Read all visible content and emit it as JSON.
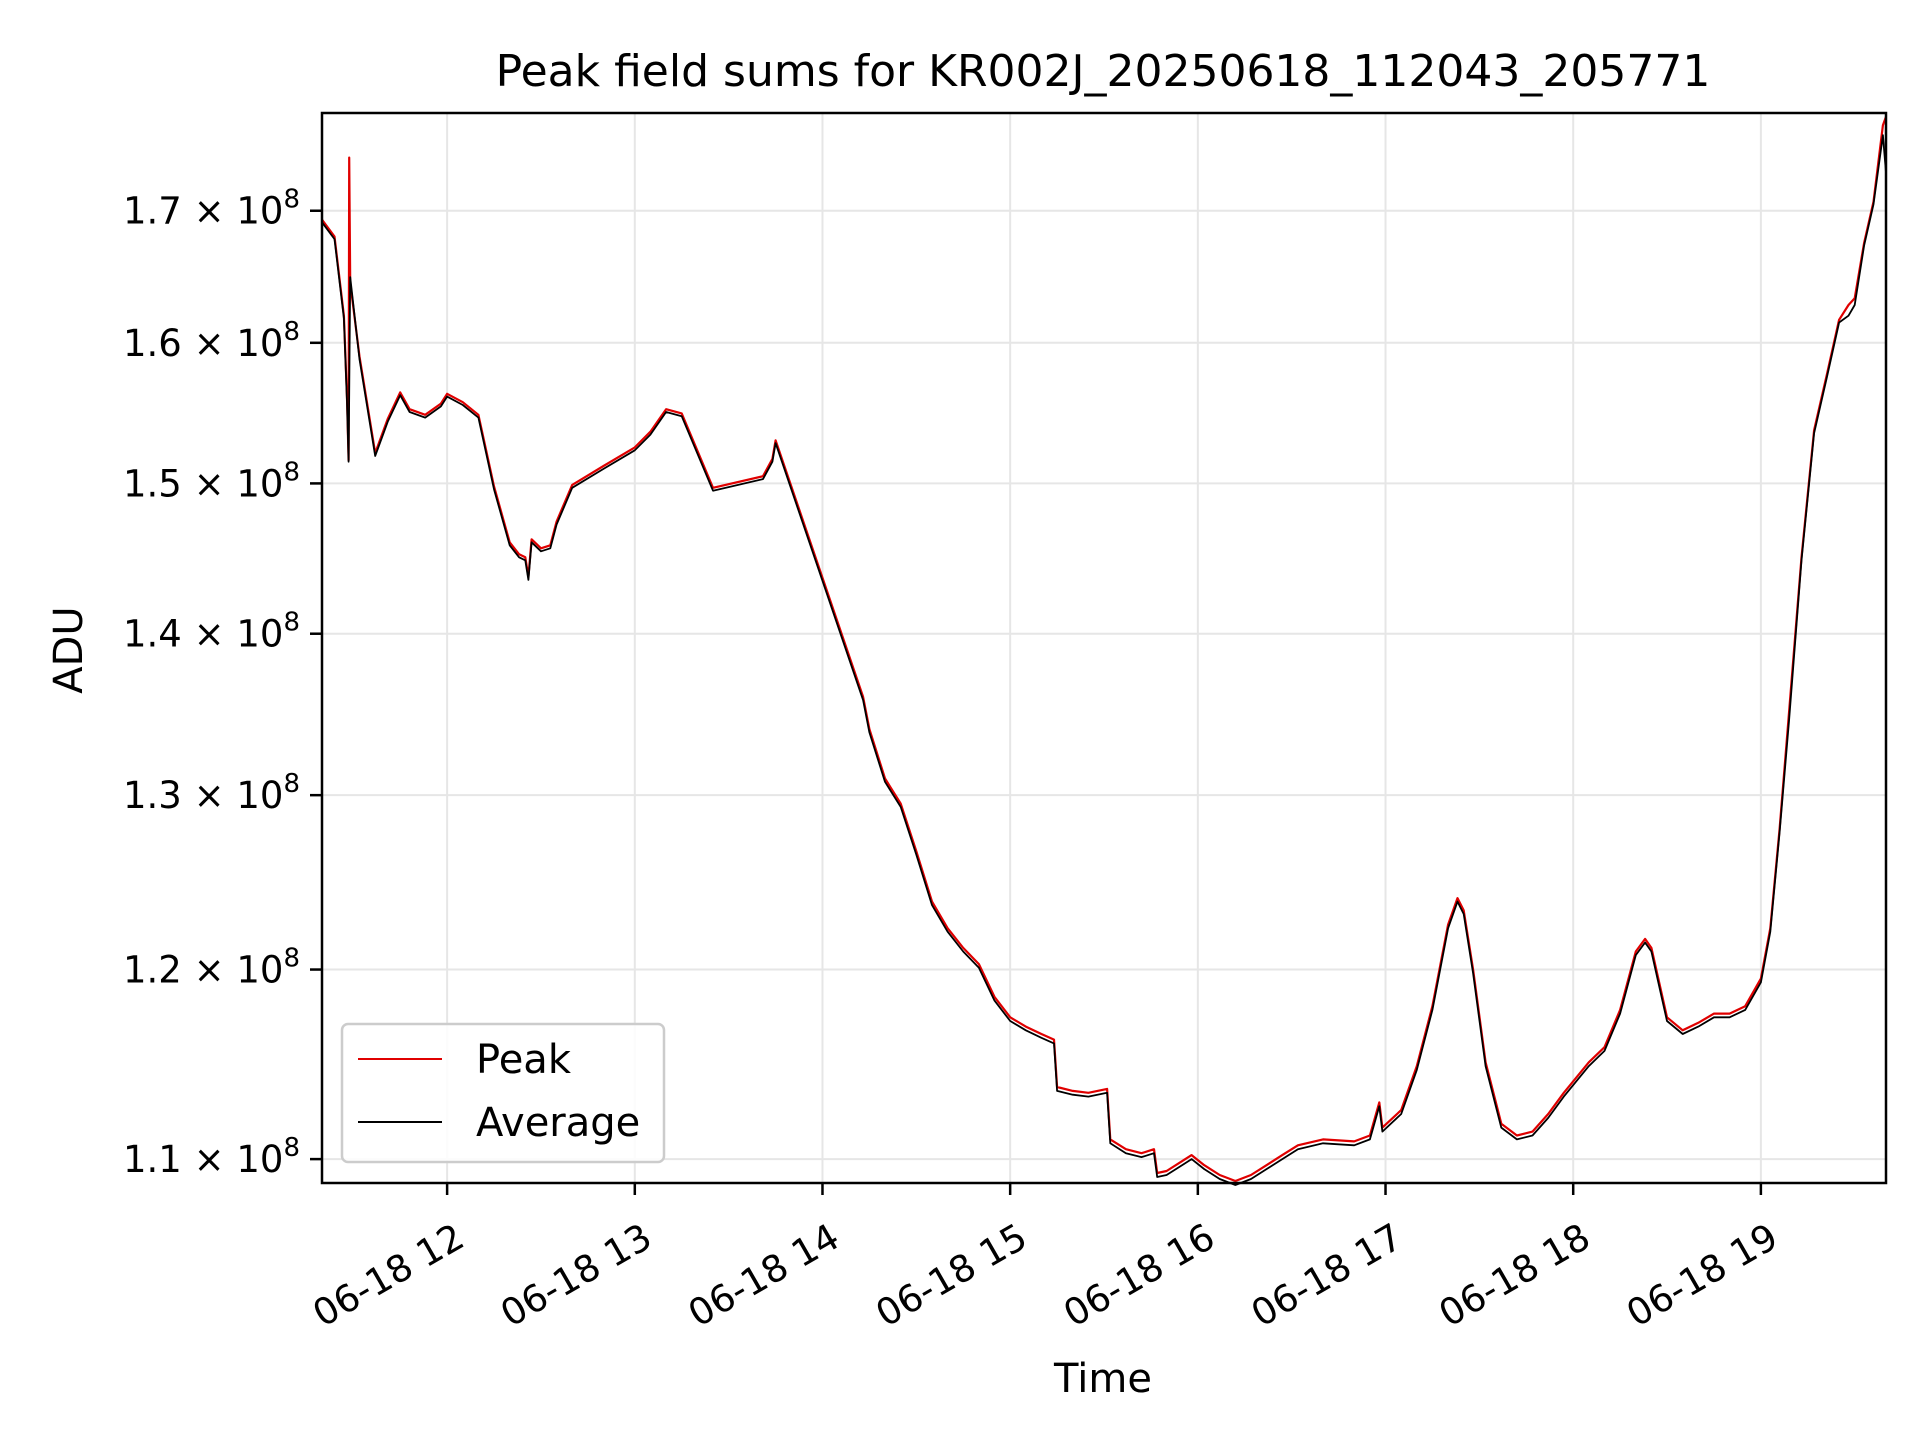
{
  "chart_data": {
    "type": "line",
    "title": "Peak field sums for KR002J_20250618_112043_205771",
    "xlabel": "Time",
    "ylabel": "ADU",
    "yscale": "log",
    "ylim": [
      108800000,
      177800000
    ],
    "xlim": [
      "2025-06-18T11:20",
      "2025-06-18T19:40"
    ],
    "grid": true,
    "legend_position": "lower-left",
    "x_ticks": [
      {
        "t": "2025-06-18T12:00",
        "label": "06-18 12"
      },
      {
        "t": "2025-06-18T13:00",
        "label": "06-18 13"
      },
      {
        "t": "2025-06-18T14:00",
        "label": "06-18 14"
      },
      {
        "t": "2025-06-18T15:00",
        "label": "06-18 15"
      },
      {
        "t": "2025-06-18T16:00",
        "label": "06-18 16"
      },
      {
        "t": "2025-06-18T17:00",
        "label": "06-18 17"
      },
      {
        "t": "2025-06-18T18:00",
        "label": "06-18 18"
      },
      {
        "t": "2025-06-18T19:00",
        "label": "06-18 19"
      }
    ],
    "y_ticks": [
      {
        "value": 110000000,
        "mantissa": "1.1",
        "base": "10",
        "exp": "8"
      },
      {
        "value": 120000000,
        "mantissa": "1.2",
        "base": "10",
        "exp": "8"
      },
      {
        "value": 130000000,
        "mantissa": "1.3",
        "base": "10",
        "exp": "8"
      },
      {
        "value": 140000000,
        "mantissa": "1.4",
        "base": "10",
        "exp": "8"
      },
      {
        "value": 150000000,
        "mantissa": "1.5",
        "base": "10",
        "exp": "8"
      },
      {
        "value": 160000000,
        "mantissa": "1.6",
        "base": "10",
        "exp": "8"
      },
      {
        "value": 170000000,
        "mantissa": "1.7",
        "base": "10",
        "exp": "8"
      }
    ],
    "series": [
      {
        "name": "Peak",
        "color": "#e00000",
        "points": [
          [
            "2025-06-18T11:20",
            169300000
          ],
          [
            "2025-06-18T11:24",
            168000000
          ],
          [
            "2025-06-18T11:27",
            162000000
          ],
          [
            "2025-06-18T11:28",
            156000000
          ],
          [
            "2025-06-18T11:28.5",
            151600000
          ],
          [
            "2025-06-18T11:28.7",
            174200000
          ],
          [
            "2025-06-18T11:29",
            164500000
          ],
          [
            "2025-06-18T11:32",
            159000000
          ],
          [
            "2025-06-18T11:37",
            152100000
          ],
          [
            "2025-06-18T11:41",
            154500000
          ],
          [
            "2025-06-18T11:45",
            156400000
          ],
          [
            "2025-06-18T11:48",
            155200000
          ],
          [
            "2025-06-18T11:53",
            154800000
          ],
          [
            "2025-06-18T11:58",
            155600000
          ],
          [
            "2025-06-18T12:00",
            156300000
          ],
          [
            "2025-06-18T12:05",
            155700000
          ],
          [
            "2025-06-18T12:10",
            154800000
          ],
          [
            "2025-06-18T12:15",
            149800000
          ],
          [
            "2025-06-18T12:20",
            146000000
          ],
          [
            "2025-06-18T12:23",
            145200000
          ],
          [
            "2025-06-18T12:25",
            145000000
          ],
          [
            "2025-06-18T12:26",
            143700000
          ],
          [
            "2025-06-18T12:27",
            146200000
          ],
          [
            "2025-06-18T12:30",
            145600000
          ],
          [
            "2025-06-18T12:33",
            145800000
          ],
          [
            "2025-06-18T12:35",
            147400000
          ],
          [
            "2025-06-18T12:40",
            149900000
          ],
          [
            "2025-06-18T12:50",
            151200000
          ],
          [
            "2025-06-18T13:00",
            152500000
          ],
          [
            "2025-06-18T13:05",
            153600000
          ],
          [
            "2025-06-18T13:10",
            155200000
          ],
          [
            "2025-06-18T13:15",
            154900000
          ],
          [
            "2025-06-18T13:25",
            149700000
          ],
          [
            "2025-06-18T13:41",
            150500000
          ],
          [
            "2025-06-18T13:44",
            151700000
          ],
          [
            "2025-06-18T13:45",
            153000000
          ],
          [
            "2025-06-18T14:13",
            136000000
          ],
          [
            "2025-06-18T14:15",
            134000000
          ],
          [
            "2025-06-18T14:20",
            131000000
          ],
          [
            "2025-06-18T14:25",
            129500000
          ],
          [
            "2025-06-18T14:30",
            126700000
          ],
          [
            "2025-06-18T14:35",
            123800000
          ],
          [
            "2025-06-18T14:40",
            122300000
          ],
          [
            "2025-06-18T14:45",
            121200000
          ],
          [
            "2025-06-18T14:50",
            120300000
          ],
          [
            "2025-06-18T14:55",
            118500000
          ],
          [
            "2025-06-18T15:00",
            117400000
          ],
          [
            "2025-06-18T15:05",
            116900000
          ],
          [
            "2025-06-18T15:10",
            116500000
          ],
          [
            "2025-06-18T15:14",
            116200000
          ],
          [
            "2025-06-18T15:15",
            113700000
          ],
          [
            "2025-06-18T15:20",
            113500000
          ],
          [
            "2025-06-18T15:25",
            113400000
          ],
          [
            "2025-06-18T15:31",
            113600000
          ],
          [
            "2025-06-18T15:32",
            111000000
          ],
          [
            "2025-06-18T15:37",
            110500000
          ],
          [
            "2025-06-18T15:42",
            110300000
          ],
          [
            "2025-06-18T15:46",
            110500000
          ],
          [
            "2025-06-18T15:47",
            109300000
          ],
          [
            "2025-06-18T15:50",
            109400000
          ],
          [
            "2025-06-18T15:55",
            109900000
          ],
          [
            "2025-06-18T15:58",
            110200000
          ],
          [
            "2025-06-18T16:02",
            109700000
          ],
          [
            "2025-06-18T16:07",
            109200000
          ],
          [
            "2025-06-18T16:12",
            108900000
          ],
          [
            "2025-06-18T16:17",
            109200000
          ],
          [
            "2025-06-18T16:22",
            109700000
          ],
          [
            "2025-06-18T16:27",
            110200000
          ],
          [
            "2025-06-18T16:32",
            110700000
          ],
          [
            "2025-06-18T16:40",
            111000000
          ],
          [
            "2025-06-18T16:50",
            110900000
          ],
          [
            "2025-06-18T16:55",
            111200000
          ],
          [
            "2025-06-18T16:58",
            112900000
          ],
          [
            "2025-06-18T16:59",
            111600000
          ],
          [
            "2025-06-18T17:05",
            112500000
          ],
          [
            "2025-06-18T17:10",
            114800000
          ],
          [
            "2025-06-18T17:15",
            118000000
          ],
          [
            "2025-06-18T17:20",
            122500000
          ],
          [
            "2025-06-18T17:23",
            124000000
          ],
          [
            "2025-06-18T17:25",
            123300000
          ],
          [
            "2025-06-18T17:28",
            120000000
          ],
          [
            "2025-06-18T17:32",
            115000000
          ],
          [
            "2025-06-18T17:37",
            111800000
          ],
          [
            "2025-06-18T17:42",
            111200000
          ],
          [
            "2025-06-18T17:47",
            111400000
          ],
          [
            "2025-06-18T17:52",
            112300000
          ],
          [
            "2025-06-18T17:57",
            113400000
          ],
          [
            "2025-06-18T18:05",
            115000000
          ],
          [
            "2025-06-18T18:10",
            115800000
          ],
          [
            "2025-06-18T18:15",
            117800000
          ],
          [
            "2025-06-18T18:20",
            121000000
          ],
          [
            "2025-06-18T18:23",
            121700000
          ],
          [
            "2025-06-18T18:25",
            121200000
          ],
          [
            "2025-06-18T18:30",
            117400000
          ],
          [
            "2025-06-18T18:35",
            116700000
          ],
          [
            "2025-06-18T18:40",
            117100000
          ],
          [
            "2025-06-18T18:45",
            117600000
          ],
          [
            "2025-06-18T18:50",
            117600000
          ],
          [
            "2025-06-18T18:55",
            118000000
          ],
          [
            "2025-06-18T19:00",
            119500000
          ],
          [
            "2025-06-18T19:03",
            122300000
          ],
          [
            "2025-06-18T19:06",
            128000000
          ],
          [
            "2025-06-18T19:09",
            135000000
          ],
          [
            "2025-06-18T19:13",
            145000000
          ],
          [
            "2025-06-18T19:17",
            153700000
          ],
          [
            "2025-06-18T19:21",
            157600000
          ],
          [
            "2025-06-18T19:25",
            161700000
          ],
          [
            "2025-06-18T19:28",
            162800000
          ],
          [
            "2025-06-18T19:30",
            163300000
          ],
          [
            "2025-06-18T19:33",
            167500000
          ],
          [
            "2025-06-18T19:36",
            170700000
          ],
          [
            "2025-06-18T19:39",
            176800000
          ],
          [
            "2025-06-18T19:40",
            177500000
          ]
        ]
      },
      {
        "name": "Average",
        "color": "#000000",
        "points": [
          [
            "2025-06-18T11:20",
            169100000
          ],
          [
            "2025-06-18T11:24",
            167800000
          ],
          [
            "2025-06-18T11:27",
            161800000
          ],
          [
            "2025-06-18T11:28",
            155700000
          ],
          [
            "2025-06-18T11:28.5",
            151500000
          ],
          [
            "2025-06-18T11:29",
            164900000
          ],
          [
            "2025-06-18T11:32",
            158800000
          ],
          [
            "2025-06-18T11:37",
            151900000
          ],
          [
            "2025-06-18T11:41",
            154300000
          ],
          [
            "2025-06-18T11:45",
            156200000
          ],
          [
            "2025-06-18T11:48",
            155000000
          ],
          [
            "2025-06-18T11:53",
            154600000
          ],
          [
            "2025-06-18T11:58",
            155400000
          ],
          [
            "2025-06-18T12:00",
            156100000
          ],
          [
            "2025-06-18T12:05",
            155500000
          ],
          [
            "2025-06-18T12:10",
            154600000
          ],
          [
            "2025-06-18T12:15",
            149600000
          ],
          [
            "2025-06-18T12:20",
            145800000
          ],
          [
            "2025-06-18T12:23",
            145000000
          ],
          [
            "2025-06-18T12:25",
            144800000
          ],
          [
            "2025-06-18T12:26",
            143500000
          ],
          [
            "2025-06-18T12:27",
            146000000
          ],
          [
            "2025-06-18T12:30",
            145400000
          ],
          [
            "2025-06-18T12:33",
            145600000
          ],
          [
            "2025-06-18T12:35",
            147200000
          ],
          [
            "2025-06-18T12:40",
            149700000
          ],
          [
            "2025-06-18T12:50",
            151000000
          ],
          [
            "2025-06-18T13:00",
            152300000
          ],
          [
            "2025-06-18T13:05",
            153400000
          ],
          [
            "2025-06-18T13:10",
            155000000
          ],
          [
            "2025-06-18T13:15",
            154700000
          ],
          [
            "2025-06-18T13:25",
            149500000
          ],
          [
            "2025-06-18T13:41",
            150300000
          ],
          [
            "2025-06-18T13:44",
            151500000
          ],
          [
            "2025-06-18T13:45",
            152800000
          ],
          [
            "2025-06-18T14:13",
            135800000
          ],
          [
            "2025-06-18T14:15",
            133800000
          ],
          [
            "2025-06-18T14:20",
            130800000
          ],
          [
            "2025-06-18T14:25",
            129300000
          ],
          [
            "2025-06-18T14:30",
            126500000
          ],
          [
            "2025-06-18T14:35",
            123600000
          ],
          [
            "2025-06-18T14:40",
            122100000
          ],
          [
            "2025-06-18T14:45",
            121000000
          ],
          [
            "2025-06-18T14:50",
            120100000
          ],
          [
            "2025-06-18T14:55",
            118300000
          ],
          [
            "2025-06-18T15:00",
            117200000
          ],
          [
            "2025-06-18T15:05",
            116700000
          ],
          [
            "2025-06-18T15:10",
            116300000
          ],
          [
            "2025-06-18T15:14",
            116000000
          ],
          [
            "2025-06-18T15:15",
            113500000
          ],
          [
            "2025-06-18T15:20",
            113300000
          ],
          [
            "2025-06-18T15:25",
            113200000
          ],
          [
            "2025-06-18T15:31",
            113400000
          ],
          [
            "2025-06-18T15:32",
            110800000
          ],
          [
            "2025-06-18T15:37",
            110300000
          ],
          [
            "2025-06-18T15:42",
            110100000
          ],
          [
            "2025-06-18T15:46",
            110300000
          ],
          [
            "2025-06-18T15:47",
            109100000
          ],
          [
            "2025-06-18T15:50",
            109200000
          ],
          [
            "2025-06-18T15:55",
            109700000
          ],
          [
            "2025-06-18T15:58",
            110000000
          ],
          [
            "2025-06-18T16:02",
            109500000
          ],
          [
            "2025-06-18T16:07",
            109000000
          ],
          [
            "2025-06-18T16:12",
            108700000
          ],
          [
            "2025-06-18T16:17",
            109000000
          ],
          [
            "2025-06-18T16:22",
            109500000
          ],
          [
            "2025-06-18T16:27",
            110000000
          ],
          [
            "2025-06-18T16:32",
            110500000
          ],
          [
            "2025-06-18T16:40",
            110800000
          ],
          [
            "2025-06-18T16:50",
            110700000
          ],
          [
            "2025-06-18T16:55",
            111000000
          ],
          [
            "2025-06-18T16:58",
            112700000
          ],
          [
            "2025-06-18T16:59",
            111400000
          ],
          [
            "2025-06-18T17:05",
            112300000
          ],
          [
            "2025-06-18T17:10",
            114600000
          ],
          [
            "2025-06-18T17:15",
            117800000
          ],
          [
            "2025-06-18T17:20",
            122300000
          ],
          [
            "2025-06-18T17:23",
            123800000
          ],
          [
            "2025-06-18T17:25",
            123100000
          ],
          [
            "2025-06-18T17:28",
            119800000
          ],
          [
            "2025-06-18T17:32",
            114800000
          ],
          [
            "2025-06-18T17:37",
            111600000
          ],
          [
            "2025-06-18T17:42",
            111000000
          ],
          [
            "2025-06-18T17:47",
            111200000
          ],
          [
            "2025-06-18T17:52",
            112100000
          ],
          [
            "2025-06-18T17:57",
            113200000
          ],
          [
            "2025-06-18T18:05",
            114800000
          ],
          [
            "2025-06-18T18:10",
            115600000
          ],
          [
            "2025-06-18T18:15",
            117600000
          ],
          [
            "2025-06-18T18:20",
            120800000
          ],
          [
            "2025-06-18T18:23",
            121500000
          ],
          [
            "2025-06-18T18:25",
            121000000
          ],
          [
            "2025-06-18T18:30",
            117200000
          ],
          [
            "2025-06-18T18:35",
            116500000
          ],
          [
            "2025-06-18T18:40",
            116900000
          ],
          [
            "2025-06-18T18:45",
            117400000
          ],
          [
            "2025-06-18T18:50",
            117400000
          ],
          [
            "2025-06-18T18:55",
            117800000
          ],
          [
            "2025-06-18T19:00",
            119300000
          ],
          [
            "2025-06-18T19:03",
            122100000
          ],
          [
            "2025-06-18T19:06",
            127800000
          ],
          [
            "2025-06-18T19:09",
            134500000
          ],
          [
            "2025-06-18T19:13",
            144800000
          ],
          [
            "2025-06-18T19:17",
            153500000
          ],
          [
            "2025-06-18T19:21",
            157400000
          ],
          [
            "2025-06-18T19:25",
            161500000
          ],
          [
            "2025-06-18T19:28",
            162000000
          ],
          [
            "2025-06-18T19:30",
            162800000
          ],
          [
            "2025-06-18T19:33",
            167300000
          ],
          [
            "2025-06-18T19:36",
            170500000
          ],
          [
            "2025-06-18T19:39",
            176000000
          ],
          [
            "2025-06-18T19:40",
            173000000
          ]
        ]
      }
    ]
  }
}
